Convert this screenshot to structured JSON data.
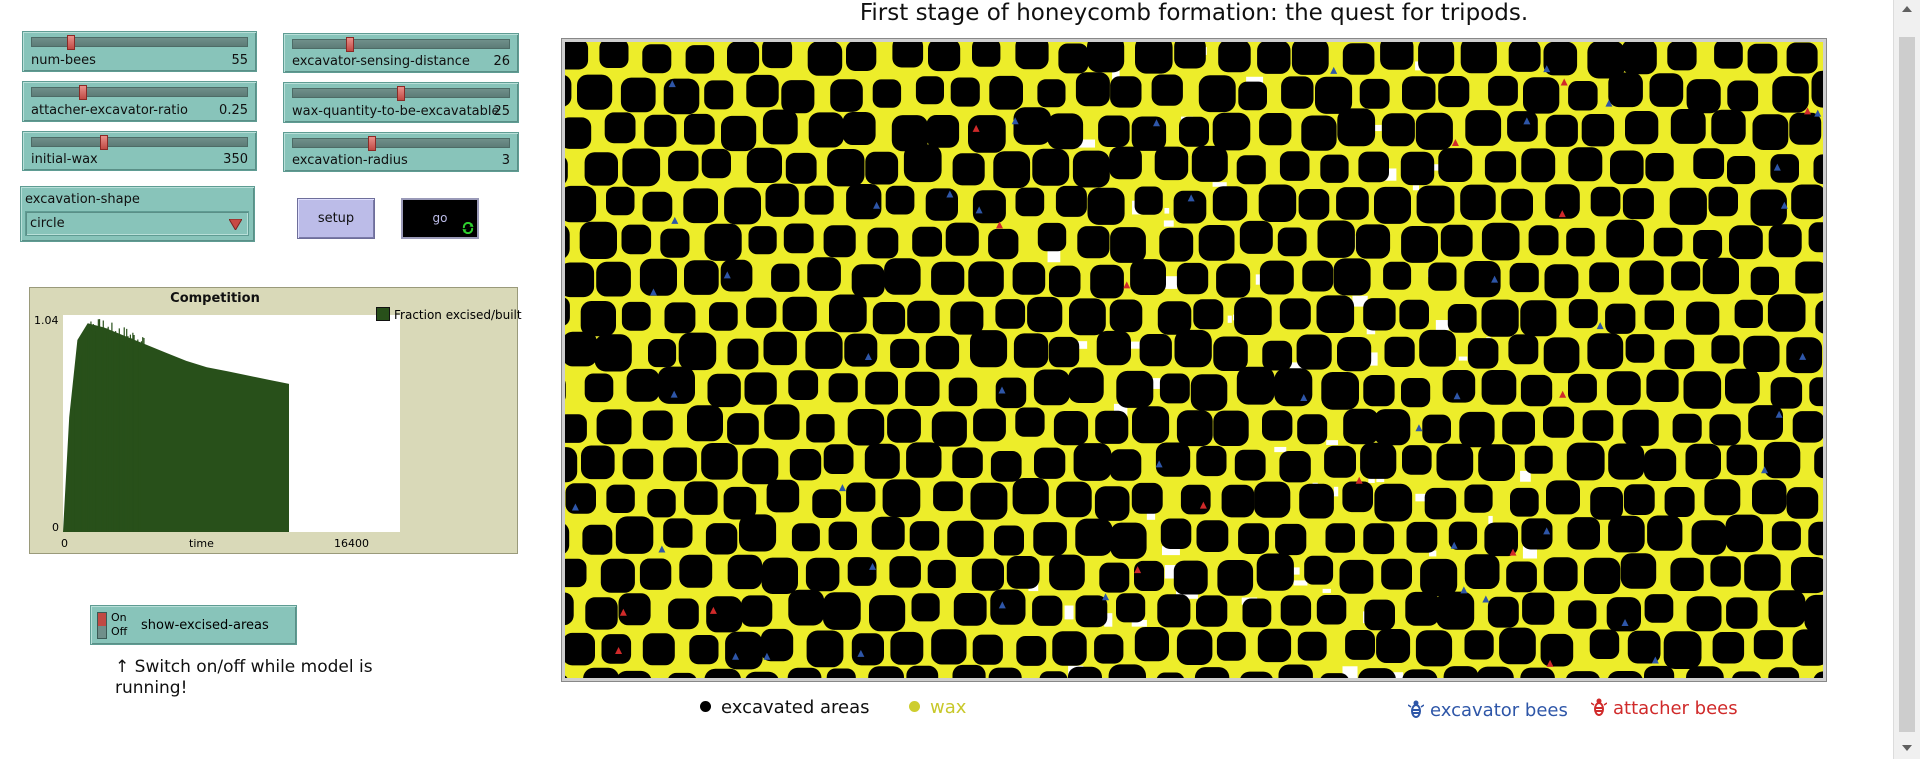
{
  "sliders": [
    {
      "id": "num-bees",
      "label": "num-bees",
      "value": "55",
      "fraction": 0.3
    },
    {
      "id": "excavator-sensing-distance",
      "label": "excavator-sensing-distance",
      "value": "26",
      "fraction": 0.24
    },
    {
      "id": "attacher-excavator-ratio",
      "label": "attacher-excavator-ratio",
      "value": "0.25",
      "fraction": 0.25
    },
    {
      "id": "wax-quantity-to-be-excavatable",
      "label": "wax-quantity-to-be-excavatable",
      "value": "25",
      "fraction": 0.5
    },
    {
      "id": "initial-wax",
      "label": "initial-wax",
      "value": "350",
      "fraction": 0.35
    },
    {
      "id": "excavation-radius",
      "label": "excavation-radius",
      "value": "3",
      "fraction": 0.38
    }
  ],
  "chooser": {
    "label": "excavation-shape",
    "value": "circle"
  },
  "buttons": {
    "setup": "setup",
    "go": "go"
  },
  "plot": {
    "title": "Competition",
    "ymax_label": "1.04",
    "ymin_label": "0",
    "xmin_label": "0",
    "xmax_label": "16400",
    "xlabel": "time",
    "legend": "Fraction excised/built",
    "color": "#28501a"
  },
  "chart_data": {
    "type": "area",
    "title": "Competition",
    "xlabel": "time",
    "ylabel": "",
    "xlim": [
      0,
      16400
    ],
    "ylim": [
      0,
      1.04
    ],
    "series": [
      {
        "name": "Fraction excised/built",
        "x": [
          0,
          300,
          700,
          1200,
          2000,
          3000,
          4000,
          5000,
          6000,
          7000,
          8000,
          9000,
          10000,
          11000
        ],
        "values": [
          0,
          0.55,
          0.92,
          1.0,
          0.98,
          0.94,
          0.9,
          0.86,
          0.82,
          0.79,
          0.77,
          0.75,
          0.73,
          0.71
        ]
      }
    ]
  },
  "switch": {
    "on": "On",
    "off": "Off",
    "label": "show-excised-areas"
  },
  "note": "↑ Switch on/off while model is running!",
  "world": {
    "title": "First stage of honeycomb formation: the quest for tripods."
  },
  "legend": {
    "excavated": "excavated areas",
    "wax": "wax",
    "excavator": "excavator bees",
    "attacher": "attacher bees"
  },
  "colors": {
    "wax": "#eded2a",
    "excavated": "#000000",
    "excavator": "#2e56a8",
    "attacher": "#d02a2a"
  }
}
